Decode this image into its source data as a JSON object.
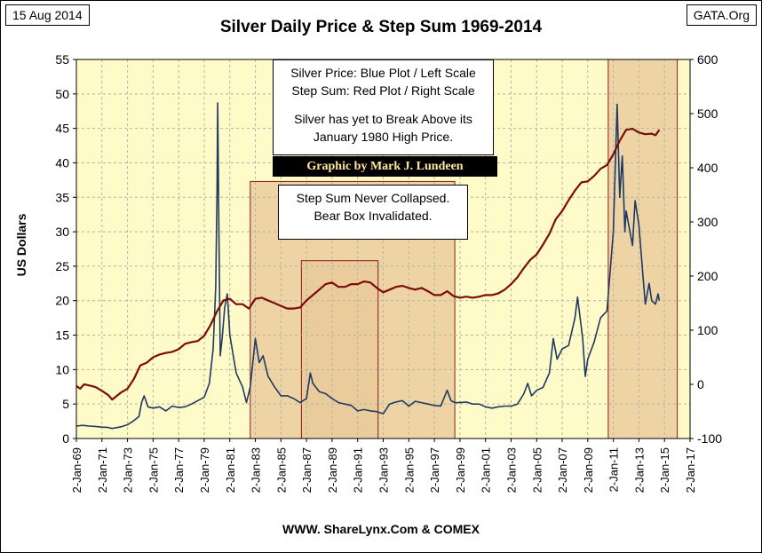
{
  "header": {
    "date": "15 Aug 2014",
    "title": "Silver Daily Price & Step Sum 1969-2014",
    "source": "GATA.Org"
  },
  "footer": "WWW. ShareLynx.Com & COMEX",
  "notes": {
    "legend_line1": "Silver Price: Blue Plot / Left Scale",
    "legend_line2": "Step Sum: Red Plot / Right Scale",
    "legend_line3": "Silver has yet to Break Above its",
    "legend_line4": "January 1980 High Price.",
    "credit": "Graphic by Mark J. Lundeen",
    "bear_line1": "Step Sum Never Collapsed.",
    "bear_line2": "Bear Box Invalidated."
  },
  "colors": {
    "plot_background": "#fffbc8",
    "box_fill": "#e9c99a",
    "box_border": "#8b1a1a",
    "silver_line": "#1f3864",
    "step_sum_line": "#7b0c0c"
  },
  "chart_data": {
    "type": "line",
    "title": "Silver Daily Price & Step Sum 1969-2014",
    "ylabel": "US Dollars",
    "xlabel": "",
    "grid": true,
    "x_tick_labels": [
      "2-Jan-69",
      "2-Jan-71",
      "2-Jan-73",
      "2-Jan-75",
      "2-Jan-77",
      "2-Jan-79",
      "2-Jan-81",
      "2-Jan-83",
      "2-Jan-85",
      "2-Jan-87",
      "2-Jan-89",
      "2-Jan-91",
      "2-Jan-93",
      "2-Jan-95",
      "2-Jan-97",
      "2-Jan-99",
      "2-Jan-01",
      "2-Jan-03",
      "2-Jan-05",
      "2-Jan-07",
      "2-Jan-09",
      "2-Jan-11",
      "2-Jan-13",
      "2-Jan-15",
      "2-Jan-17"
    ],
    "xlim": [
      1969,
      2017
    ],
    "ylim_left": [
      0,
      55
    ],
    "ylim_right": [
      -100,
      600
    ],
    "y_ticks_left": [
      0,
      5,
      10,
      15,
      20,
      25,
      30,
      35,
      40,
      45,
      50,
      55
    ],
    "y_ticks_right": [
      -100,
      0,
      100,
      200,
      300,
      400,
      500,
      600
    ],
    "shaded_boxes": [
      {
        "x": [
          1982.6,
          1998.6
        ],
        "y_top": 37.3,
        "y_bottom": 0
      },
      {
        "x": [
          1986.6,
          1992.6
        ],
        "y_top": 25.8,
        "y_bottom": 0
      },
      {
        "x": [
          2010.6,
          2016.0
        ],
        "y_top": 55,
        "y_bottom": 0
      }
    ],
    "series": [
      {
        "name": "Silver Price",
        "axis": "left",
        "points": [
          [
            1969.0,
            1.8
          ],
          [
            1969.5,
            1.9
          ],
          [
            1970.0,
            1.8
          ],
          [
            1970.5,
            1.75
          ],
          [
            1971.0,
            1.65
          ],
          [
            1971.5,
            1.6
          ],
          [
            1971.8,
            1.45
          ],
          [
            1972.5,
            1.7
          ],
          [
            1973.0,
            2.0
          ],
          [
            1973.5,
            2.6
          ],
          [
            1973.9,
            3.2
          ],
          [
            1974.1,
            5.2
          ],
          [
            1974.3,
            6.2
          ],
          [
            1974.6,
            4.6
          ],
          [
            1975.0,
            4.4
          ],
          [
            1975.5,
            4.6
          ],
          [
            1976.0,
            4.0
          ],
          [
            1976.5,
            4.7
          ],
          [
            1977.0,
            4.5
          ],
          [
            1977.5,
            4.6
          ],
          [
            1978.0,
            5.0
          ],
          [
            1978.5,
            5.5
          ],
          [
            1979.0,
            6.0
          ],
          [
            1979.4,
            8.0
          ],
          [
            1979.7,
            13.0
          ],
          [
            1979.9,
            22.0
          ],
          [
            1980.0,
            36.0
          ],
          [
            1980.05,
            48.7
          ],
          [
            1980.15,
            30.0
          ],
          [
            1980.25,
            12.0
          ],
          [
            1980.4,
            14.5
          ],
          [
            1980.6,
            19.0
          ],
          [
            1980.8,
            21.0
          ],
          [
            1981.0,
            15.0
          ],
          [
            1981.5,
            9.5
          ],
          [
            1982.0,
            7.5
          ],
          [
            1982.3,
            5.2
          ],
          [
            1982.6,
            7.5
          ],
          [
            1983.0,
            14.5
          ],
          [
            1983.3,
            11.0
          ],
          [
            1983.6,
            12.0
          ],
          [
            1984.0,
            9.0
          ],
          [
            1984.5,
            7.5
          ],
          [
            1985.0,
            6.2
          ],
          [
            1985.5,
            6.2
          ],
          [
            1986.0,
            5.8
          ],
          [
            1986.5,
            5.2
          ],
          [
            1987.0,
            5.8
          ],
          [
            1987.3,
            9.5
          ],
          [
            1987.5,
            8.0
          ],
          [
            1988.0,
            6.8
          ],
          [
            1988.5,
            6.5
          ],
          [
            1989.0,
            5.8
          ],
          [
            1989.5,
            5.2
          ],
          [
            1990.0,
            5.0
          ],
          [
            1990.5,
            4.8
          ],
          [
            1991.0,
            4.0
          ],
          [
            1991.5,
            4.2
          ],
          [
            1992.0,
            4.0
          ],
          [
            1992.5,
            3.9
          ],
          [
            1993.0,
            3.6
          ],
          [
            1993.5,
            5.0
          ],
          [
            1994.0,
            5.3
          ],
          [
            1994.5,
            5.5
          ],
          [
            1995.0,
            4.7
          ],
          [
            1995.5,
            5.4
          ],
          [
            1996.0,
            5.2
          ],
          [
            1996.5,
            5.0
          ],
          [
            1997.0,
            4.8
          ],
          [
            1997.5,
            4.7
          ],
          [
            1998.0,
            7.0
          ],
          [
            1998.3,
            5.5
          ],
          [
            1998.6,
            5.2
          ],
          [
            1999.0,
            5.2
          ],
          [
            1999.5,
            5.3
          ],
          [
            2000.0,
            5.0
          ],
          [
            2000.5,
            5.0
          ],
          [
            2001.0,
            4.6
          ],
          [
            2001.5,
            4.4
          ],
          [
            2002.0,
            4.6
          ],
          [
            2002.5,
            4.7
          ],
          [
            2003.0,
            4.7
          ],
          [
            2003.5,
            5.0
          ],
          [
            2004.0,
            6.5
          ],
          [
            2004.3,
            8.0
          ],
          [
            2004.6,
            6.2
          ],
          [
            2005.0,
            7.0
          ],
          [
            2005.5,
            7.4
          ],
          [
            2006.0,
            9.5
          ],
          [
            2006.3,
            14.5
          ],
          [
            2006.6,
            11.5
          ],
          [
            2007.0,
            13.0
          ],
          [
            2007.5,
            13.5
          ],
          [
            2008.0,
            17.5
          ],
          [
            2008.2,
            20.5
          ],
          [
            2008.6,
            14.5
          ],
          [
            2008.8,
            9.0
          ],
          [
            2009.0,
            11.5
          ],
          [
            2009.5,
            14.0
          ],
          [
            2010.0,
            17.5
          ],
          [
            2010.5,
            18.5
          ],
          [
            2011.0,
            30.0
          ],
          [
            2011.3,
            48.5
          ],
          [
            2011.5,
            35.0
          ],
          [
            2011.7,
            41.0
          ],
          [
            2011.9,
            30.0
          ],
          [
            2012.0,
            33.0
          ],
          [
            2012.3,
            30.0
          ],
          [
            2012.5,
            28.0
          ],
          [
            2012.7,
            34.5
          ],
          [
            2013.0,
            31.0
          ],
          [
            2013.3,
            24.0
          ],
          [
            2013.5,
            19.5
          ],
          [
            2013.8,
            22.5
          ],
          [
            2014.0,
            20.0
          ],
          [
            2014.3,
            19.5
          ],
          [
            2014.5,
            21.0
          ],
          [
            2014.6,
            20.0
          ]
        ]
      },
      {
        "name": "Step Sum",
        "axis": "right",
        "points": [
          [
            1969.0,
            -3
          ],
          [
            1969.3,
            -8
          ],
          [
            1969.6,
            0
          ],
          [
            1970.0,
            -2
          ],
          [
            1970.5,
            -5
          ],
          [
            1971.0,
            -12
          ],
          [
            1971.5,
            -20
          ],
          [
            1971.8,
            -28
          ],
          [
            1972.5,
            -15
          ],
          [
            1973.0,
            -8
          ],
          [
            1973.5,
            10
          ],
          [
            1974.0,
            35
          ],
          [
            1974.5,
            40
          ],
          [
            1975.0,
            50
          ],
          [
            1975.5,
            55
          ],
          [
            1976.0,
            58
          ],
          [
            1976.5,
            60
          ],
          [
            1977.0,
            65
          ],
          [
            1977.5,
            75
          ],
          [
            1978.0,
            78
          ],
          [
            1978.5,
            80
          ],
          [
            1979.0,
            90
          ],
          [
            1979.5,
            110
          ],
          [
            1980.0,
            135
          ],
          [
            1980.5,
            155
          ],
          [
            1981.0,
            158
          ],
          [
            1981.5,
            148
          ],
          [
            1982.0,
            148
          ],
          [
            1982.5,
            140
          ],
          [
            1983.0,
            158
          ],
          [
            1983.5,
            160
          ],
          [
            1984.0,
            155
          ],
          [
            1984.5,
            150
          ],
          [
            1985.0,
            145
          ],
          [
            1985.5,
            140
          ],
          [
            1986.0,
            140
          ],
          [
            1986.5,
            142
          ],
          [
            1987.0,
            155
          ],
          [
            1987.5,
            165
          ],
          [
            1988.0,
            175
          ],
          [
            1988.5,
            185
          ],
          [
            1989.0,
            188
          ],
          [
            1989.5,
            180
          ],
          [
            1990.0,
            180
          ],
          [
            1990.5,
            185
          ],
          [
            1991.0,
            185
          ],
          [
            1991.5,
            190
          ],
          [
            1992.0,
            188
          ],
          [
            1992.5,
            178
          ],
          [
            1993.0,
            170
          ],
          [
            1993.5,
            175
          ],
          [
            1994.0,
            180
          ],
          [
            1994.5,
            182
          ],
          [
            1995.0,
            178
          ],
          [
            1995.5,
            175
          ],
          [
            1996.0,
            178
          ],
          [
            1996.5,
            172
          ],
          [
            1997.0,
            165
          ],
          [
            1997.5,
            165
          ],
          [
            1998.0,
            172
          ],
          [
            1998.5,
            163
          ],
          [
            1999.0,
            160
          ],
          [
            1999.5,
            162
          ],
          [
            2000.0,
            160
          ],
          [
            2000.5,
            162
          ],
          [
            2001.0,
            165
          ],
          [
            2001.5,
            165
          ],
          [
            2002.0,
            168
          ],
          [
            2002.5,
            175
          ],
          [
            2003.0,
            185
          ],
          [
            2003.5,
            198
          ],
          [
            2004.0,
            215
          ],
          [
            2004.5,
            230
          ],
          [
            2005.0,
            240
          ],
          [
            2005.5,
            258
          ],
          [
            2006.0,
            278
          ],
          [
            2006.5,
            305
          ],
          [
            2007.0,
            320
          ],
          [
            2007.5,
            340
          ],
          [
            2008.0,
            358
          ],
          [
            2008.5,
            373
          ],
          [
            2009.0,
            375
          ],
          [
            2009.5,
            385
          ],
          [
            2010.0,
            398
          ],
          [
            2010.5,
            405
          ],
          [
            2011.0,
            425
          ],
          [
            2011.5,
            450
          ],
          [
            2012.0,
            470
          ],
          [
            2012.5,
            472
          ],
          [
            2013.0,
            465
          ],
          [
            2013.5,
            462
          ],
          [
            2014.0,
            463
          ],
          [
            2014.3,
            460
          ],
          [
            2014.6,
            470
          ]
        ]
      }
    ]
  }
}
